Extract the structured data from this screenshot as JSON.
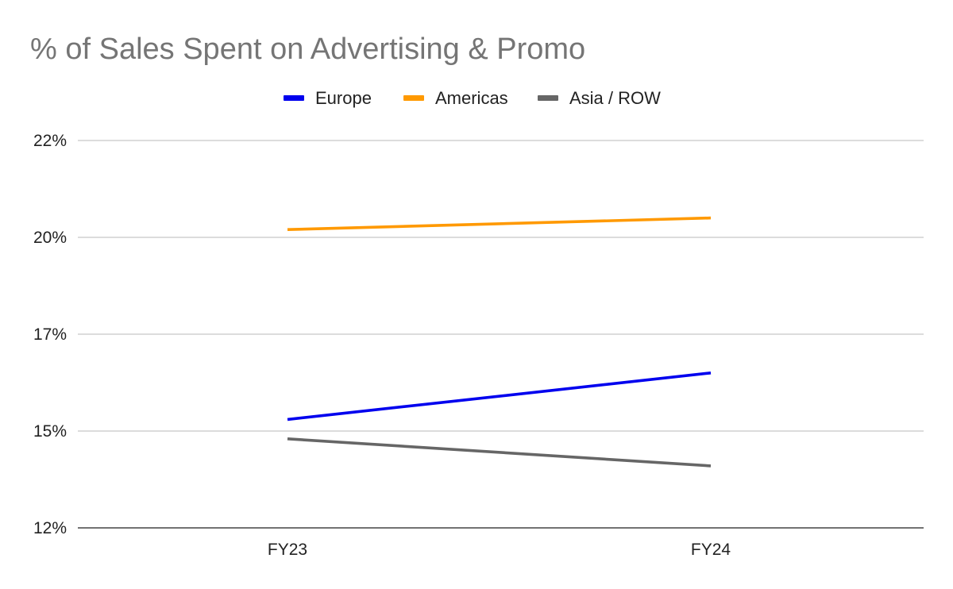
{
  "chart_data": {
    "type": "line",
    "title": "% of Sales Spent on Advertising & Promo",
    "xlabel": "",
    "ylabel": "",
    "categories": [
      "FY23",
      "FY24"
    ],
    "ylim": [
      12,
      22
    ],
    "yticks": [
      {
        "value": 12,
        "label": "12%"
      },
      {
        "value": 14.5,
        "label": "15%"
      },
      {
        "value": 17,
        "label": "17%"
      },
      {
        "value": 19.5,
        "label": "20%"
      },
      {
        "value": 22,
        "label": "22%"
      }
    ],
    "grid": true,
    "legend_position": "top-center",
    "series": [
      {
        "name": "Europe",
        "color": "#0000ee",
        "values": [
          14.8,
          16.0
        ]
      },
      {
        "name": "Americas",
        "color": "#ff9900",
        "values": [
          19.7,
          20.0
        ]
      },
      {
        "name": "Asia / ROW",
        "color": "#666666",
        "values": [
          14.3,
          13.6
        ]
      }
    ]
  }
}
